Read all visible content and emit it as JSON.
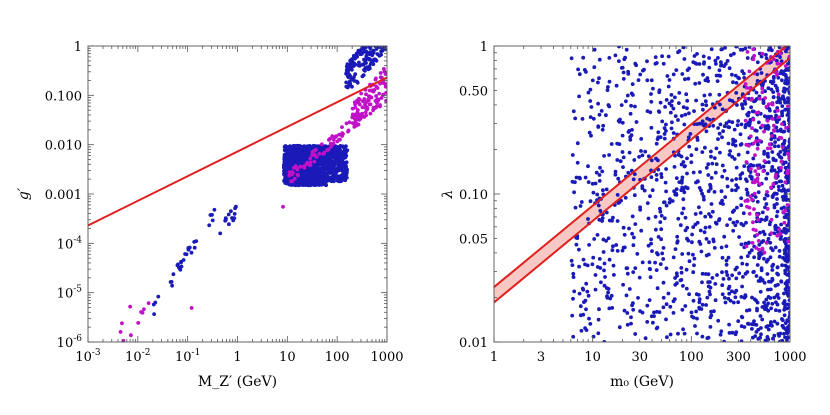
{
  "chart_data": [
    {
      "type": "scatter",
      "xscale": "log",
      "yscale": "log",
      "xlim": [
        0.001,
        1000
      ],
      "ylim": [
        1e-06,
        1
      ],
      "xlabel": "M_Z′ (GeV)",
      "ylabel": "g′",
      "xticks": [
        {
          "v": 0.001,
          "label": "10",
          "sup": "-3"
        },
        {
          "v": 0.01,
          "label": "10",
          "sup": "-2"
        },
        {
          "v": 0.1,
          "label": "10",
          "sup": "-1"
        },
        {
          "v": 1,
          "label": "1"
        },
        {
          "v": 10,
          "label": "10"
        },
        {
          "v": 100,
          "label": "100"
        },
        {
          "v": 1000,
          "label": "1000"
        }
      ],
      "yticks": [
        {
          "v": 1e-06,
          "label": "10",
          "sup": "-6"
        },
        {
          "v": 1e-05,
          "label": "10",
          "sup": "-5"
        },
        {
          "v": 0.0001,
          "label": "10",
          "sup": "-4"
        },
        {
          "v": 0.001,
          "label": "0.001"
        },
        {
          "v": 0.01,
          "label": "0.010"
        },
        {
          "v": 0.1,
          "label": "0.100"
        },
        {
          "v": 1,
          "label": "1"
        }
      ],
      "line": {
        "color": "#e0201e",
        "x": [
          0.001,
          1000
        ],
        "y": [
          0.00023,
          0.23
        ]
      },
      "clusters": [
        {
          "color": "#1a1ab8",
          "n": 30,
          "x": [
            0.02,
            0.35
          ],
          "pow": 1.6,
          "a": 0.0023,
          "s": [
            0.75,
            1.35
          ]
        },
        {
          "color": "#1a1ab8",
          "n": 14,
          "x": [
            0.4,
            1.05
          ],
          "pow": 1.4,
          "a": 0.0006,
          "s": [
            0.55,
            1.2
          ]
        },
        {
          "color": "#1a1ab8",
          "n": 1000,
          "x": [
            8.5,
            60
          ],
          "y": [
            0.0015,
            0.0095
          ],
          "ylog": true
        },
        {
          "color": "#1a1ab8",
          "n": 260,
          "x": [
            60,
            160
          ],
          "y": [
            0.0018,
            0.0095
          ],
          "ylog": true
        },
        {
          "color": "#1a1ab8",
          "n": 200,
          "x": [
            150,
            1000
          ],
          "pow": 1.2,
          "a": 0.00028,
          "s": [
            0.8,
            3.6
          ]
        },
        {
          "color": "#c010c8",
          "n": 110,
          "x": [
            10,
            1000
          ],
          "pow": 0.85,
          "a": 0.00028,
          "s": [
            0.75,
            1.35
          ]
        },
        {
          "color": "#c010c8",
          "n": 60,
          "x": [
            200,
            1000
          ],
          "pow": 1.1,
          "a": 8e-05,
          "s": [
            1.0,
            2.6
          ]
        },
        {
          "color": "#c010c8",
          "n": 7,
          "x": [
            0.005,
            0.03
          ],
          "pow": 1.5,
          "a": 0.0025,
          "s": [
            0.7,
            1.3
          ]
        }
      ],
      "points": [
        {
          "x": 0.0045,
          "y": 1.6e-06,
          "color": "#c010c8"
        },
        {
          "x": 0.0048,
          "y": 2.4e-06,
          "color": "#c010c8"
        },
        {
          "x": 0.007,
          "y": 5.2e-06,
          "color": "#c010c8"
        },
        {
          "x": 0.12,
          "y": 4.9e-06,
          "color": "#c010c8"
        },
        {
          "x": 8.2,
          "y": 0.00055,
          "color": "#c010c8"
        }
      ]
    },
    {
      "type": "scatter",
      "xscale": "log",
      "yscale": "log",
      "xlim": [
        1,
        1000
      ],
      "ylim": [
        0.01,
        1
      ],
      "xlabel": "m₀ (GeV)",
      "ylabel": "λ",
      "xticks": [
        {
          "v": 1,
          "label": "1"
        },
        {
          "v": 3,
          "label": "3"
        },
        {
          "v": 10,
          "label": "10"
        },
        {
          "v": 30,
          "label": "30"
        },
        {
          "v": 100,
          "label": "100"
        },
        {
          "v": 300,
          "label": "300"
        },
        {
          "v": 1000,
          "label": "1000"
        }
      ],
      "yticks": [
        {
          "v": 0.01,
          "label": "0.01"
        },
        {
          "v": 0.05,
          "label": "0.05"
        },
        {
          "v": 0.1,
          "label": "0.10"
        },
        {
          "v": 0.5,
          "label": "0.50"
        },
        {
          "v": 1,
          "label": "1"
        }
      ],
      "band": {
        "color": "#e0201e",
        "fill": "#f8c8c4",
        "upper": {
          "x": [
            1,
            1000
          ],
          "y": [
            0.0235,
            1.05
          ]
        },
        "lower": {
          "x": [
            1,
            1000
          ],
          "y": [
            0.0185,
            0.83
          ]
        }
      },
      "clusters": [
        {
          "color": "#1a1ab8",
          "n": 1500,
          "x": [
            6,
            1000
          ],
          "y": [
            0.01,
            1
          ],
          "ylog": true,
          "bias": 2.0
        },
        {
          "color": "#c010c8",
          "n": 130,
          "x": [
            350,
            1000
          ],
          "y": [
            0.04,
            1
          ],
          "ylog": true
        }
      ],
      "points": []
    }
  ]
}
